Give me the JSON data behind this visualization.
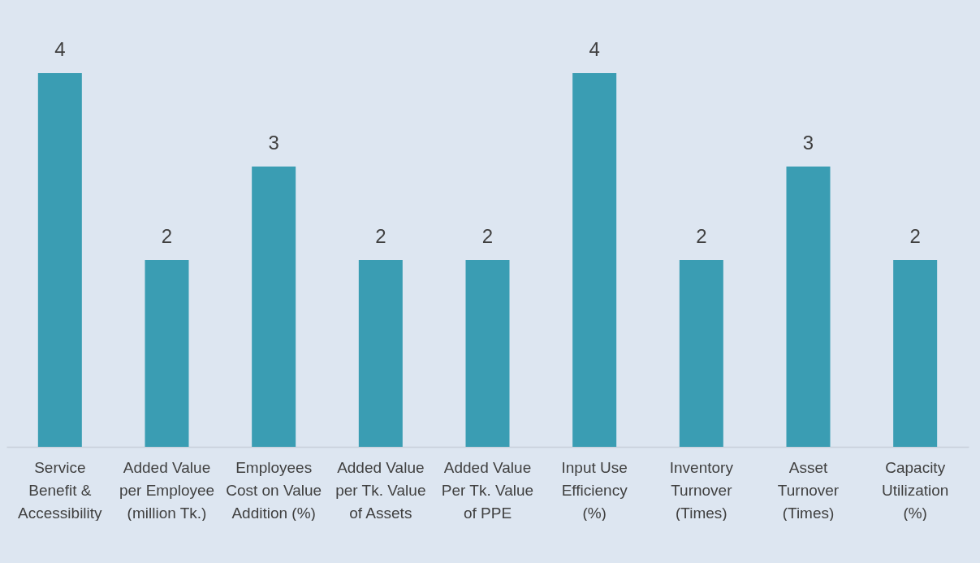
{
  "chart_data": {
    "type": "bar",
    "categories": [
      "Service Benefit & Accessibility",
      "Added Value per Employee (million Tk.)",
      "Employees Cost on Value Addition (%)",
      "Added Value per Tk. Value of Assets",
      "Added Value Per Tk. Value of PPE",
      "Input Use Efficiency (%)",
      "Inventory Turnover (Times)",
      "Asset Turnover (Times)",
      "Capacity Utilization (%)"
    ],
    "values": [
      4,
      2,
      3,
      2,
      2,
      4,
      2,
      3,
      2
    ],
    "color": "#3a9db3",
    "data_labels": true
  }
}
